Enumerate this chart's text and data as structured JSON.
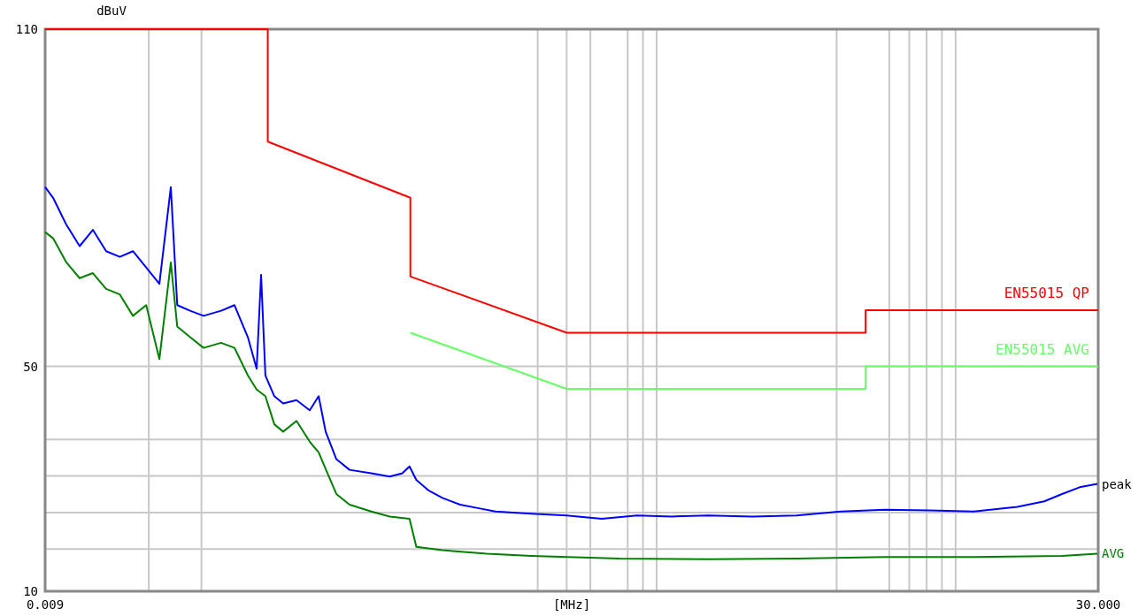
{
  "chart_data": {
    "type": "line",
    "ylabel": "dBuV",
    "xlabel": "[MHz]",
    "log": "x",
    "grid": true,
    "marker": "none",
    "line_style": "solid",
    "xlim": [
      0.009,
      30
    ],
    "xticks": [
      {
        "value": 0.009,
        "label": "0.009"
      },
      {
        "value": 0.02,
        "label": null
      },
      {
        "value": 0.03,
        "label": null
      },
      {
        "value": 0.4,
        "label": null
      },
      {
        "value": 0.5,
        "label": null
      },
      {
        "value": 0.6,
        "label": null
      },
      {
        "value": 0.8,
        "label": null
      },
      {
        "value": 0.9,
        "label": null
      },
      {
        "value": 1,
        "label": null
      },
      {
        "value": 4,
        "label": null
      },
      {
        "value": 6,
        "label": null
      },
      {
        "value": 7,
        "label": null
      },
      {
        "value": 8,
        "label": null
      },
      {
        "value": 9,
        "label": null
      },
      {
        "value": 10,
        "label": null
      },
      {
        "value": 30,
        "label": "30.000"
      }
    ],
    "ylim": [
      10,
      110
    ],
    "yticks": [
      10,
      {
        "value": 17.5,
        "label": null
      },
      {
        "value": 24,
        "label": null
      },
      {
        "value": 30.5,
        "label": null
      },
      {
        "value": 37,
        "label": null
      },
      50,
      110
    ],
    "series": [
      {
        "name": "peak",
        "color": "#0000ff",
        "x": [
          0.009,
          0.00957,
          0.0106,
          0.01174,
          0.013,
          0.0144,
          0.016,
          0.0177,
          0.0196,
          0.0217,
          0.0237,
          0.0249,
          0.0275,
          0.0305,
          0.0349,
          0.0387,
          0.0429,
          0.0459,
          0.0475,
          0.0491,
          0.0526,
          0.0563,
          0.0624,
          0.0691,
          0.074,
          0.0781,
          0.0848,
          0.0939,
          0.111,
          0.128,
          0.141,
          0.149,
          0.157,
          0.173,
          0.192,
          0.22,
          0.252,
          0.289,
          0.38,
          0.499,
          0.655,
          0.86,
          1.13,
          1.49,
          2.09,
          2.94,
          4.13,
          5.8,
          8.16,
          11.5,
          16.1,
          19.8,
          22.7,
          26,
          29.8
        ],
        "values": [
          81.9,
          80,
          75.2,
          71.4,
          74.3,
          70.5,
          69.5,
          70.5,
          67.6,
          64.7,
          81.9,
          60.9,
          59.9,
          59,
          59.9,
          60.9,
          55.2,
          49.6,
          66.3,
          48.4,
          44.7,
          43.4,
          44,
          42.2,
          44.7,
          38.4,
          33.5,
          31.6,
          31,
          30.4,
          31,
          32.2,
          29.8,
          27.9,
          26.6,
          25.4,
          24.8,
          24.2,
          23.8,
          23.5,
          22.9,
          23.5,
          23.3,
          23.5,
          23.3,
          23.5,
          24.2,
          24.5,
          24.4,
          24.2,
          25,
          26,
          27.3,
          28.5,
          29.1
        ]
      },
      {
        "name": "AVG",
        "color": "#008000",
        "x": [
          0.009,
          0.00957,
          0.0106,
          0.01174,
          0.013,
          0.0144,
          0.016,
          0.0177,
          0.0196,
          0.0217,
          0.0237,
          0.0249,
          0.0275,
          0.0305,
          0.0349,
          0.0387,
          0.0429,
          0.0459,
          0.0491,
          0.0526,
          0.0563,
          0.0624,
          0.0691,
          0.074,
          0.0792,
          0.0848,
          0.0939,
          0.111,
          0.128,
          0.149,
          0.157,
          0.192,
          0.27,
          0.38,
          0.751,
          1.49,
          2.94,
          5.8,
          11.5,
          22.7,
          29.8
        ],
        "values": [
          73.9,
          72.8,
          68.5,
          65.7,
          66.6,
          63.8,
          62.8,
          59,
          60.9,
          51.3,
          68.5,
          57.1,
          55.2,
          53.3,
          54.2,
          53.3,
          48.4,
          45.9,
          44.7,
          39.7,
          38.4,
          40.3,
          36.6,
          34.7,
          31,
          27.3,
          25.4,
          24.2,
          23.3,
          22.9,
          17.9,
          17.3,
          16.7,
          16.3,
          15.8,
          15.7,
          15.8,
          16.1,
          16.1,
          16.3,
          16.7
        ]
      },
      {
        "name": "EN55015 QP",
        "color": "#ff0000",
        "x": [
          0.009,
          0.05,
          0.05,
          0.15,
          0.15,
          0.5,
          5,
          5,
          30
        ],
        "values": [
          110,
          110,
          90,
          80,
          66,
          56,
          56,
          60,
          60
        ]
      },
      {
        "name": "EN55015 AVG",
        "color": "#66ff66",
        "x": [
          0.15,
          0.5,
          5,
          5,
          30
        ],
        "values": [
          56,
          46,
          46,
          50,
          50
        ]
      }
    ]
  }
}
